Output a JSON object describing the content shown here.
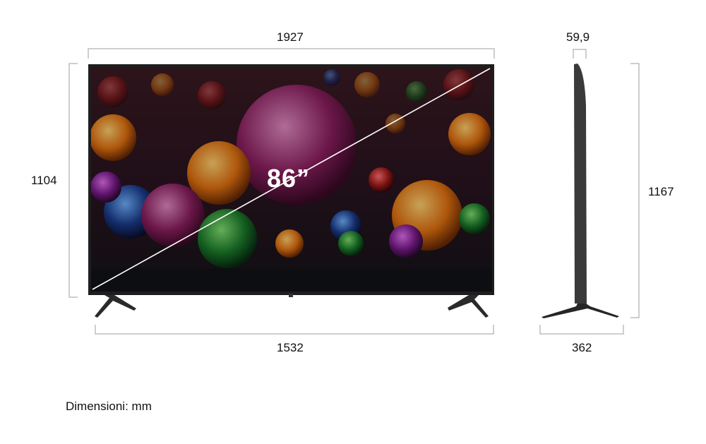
{
  "dimensions": {
    "width": "1927",
    "height_without_stand": "1104",
    "stand_span": "1532",
    "depth": "59,9",
    "height_with_stand": "1167",
    "stand_depth": "362"
  },
  "screen_size_label": "86”",
  "units_note": "Dimensioni: mm",
  "colors": {
    "bracket": "#bdbdbd",
    "tv_body": "#2b2b2b",
    "text": "#111111"
  }
}
